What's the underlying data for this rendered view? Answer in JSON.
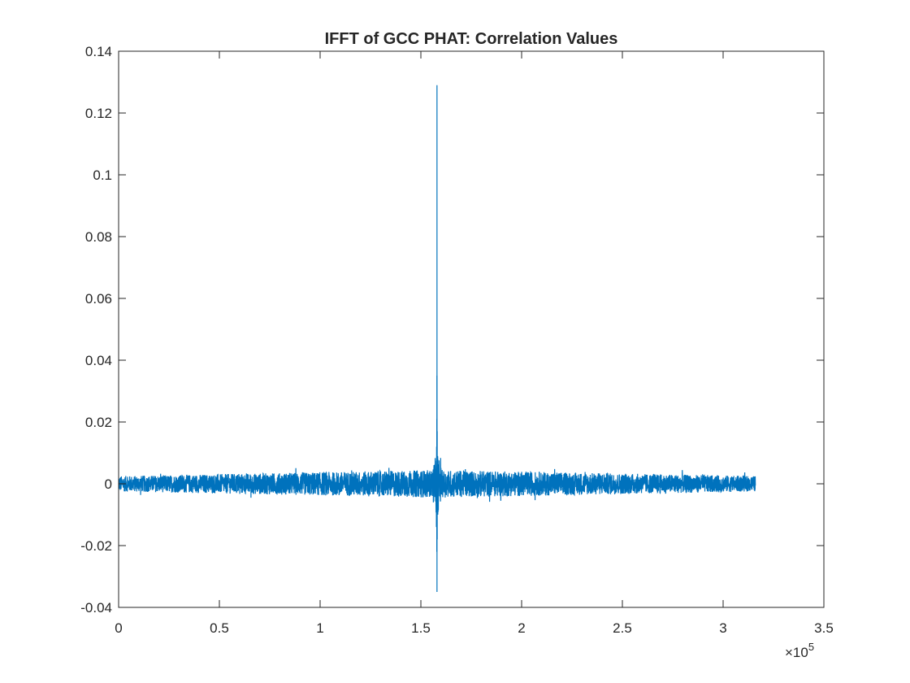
{
  "chart_data": {
    "type": "line",
    "title": "IFFT of GCC PHAT: Correlation Values",
    "xlabel": "",
    "ylabel": "",
    "xlim": [
      0,
      350000
    ],
    "ylim": [
      -0.04,
      0.14
    ],
    "x_ticks": [
      0,
      50000,
      100000,
      150000,
      200000,
      250000,
      300000,
      350000
    ],
    "x_tick_labels": [
      "0",
      "0.5",
      "1",
      "1.5",
      "2",
      "2.5",
      "3",
      "3.5"
    ],
    "y_ticks": [
      -0.04,
      -0.02,
      0,
      0.02,
      0.04,
      0.06,
      0.08,
      0.1,
      0.12,
      0.14
    ],
    "y_tick_labels": [
      "-0.04",
      "-0.02",
      "0",
      "0.02",
      "0.04",
      "0.06",
      "0.08",
      "0.1",
      "0.12",
      "0.14"
    ],
    "x_exponent": {
      "base": "×10",
      "power": "5"
    },
    "grid": false,
    "box": true,
    "series": [
      {
        "color": "#0072BD",
        "x_range": [
          0,
          316000
        ],
        "peak": {
          "x": 158000,
          "y": 0.129
        },
        "min": {
          "x": 158000,
          "y": -0.035
        },
        "noise_amplitude_edges": 0.0025,
        "noise_amplitude_center": 0.0045,
        "outliers": [
          {
            "x": 158000,
            "y": 0.129
          },
          {
            "x": 158000,
            "y": 0.035
          },
          {
            "x": 157900,
            "y": 0.021
          },
          {
            "x": 158100,
            "y": 0.017
          },
          {
            "x": 157800,
            "y": 0.012
          },
          {
            "x": 158300,
            "y": 0.009
          },
          {
            "x": 158000,
            "y": -0.035
          },
          {
            "x": 157900,
            "y": -0.022
          },
          {
            "x": 158100,
            "y": -0.018
          },
          {
            "x": 157700,
            "y": -0.014
          },
          {
            "x": 158400,
            "y": -0.01
          }
        ]
      }
    ]
  }
}
